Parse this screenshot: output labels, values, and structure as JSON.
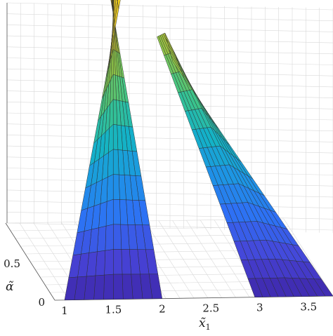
{
  "chart_data": {
    "type": "surface",
    "title": "",
    "x_label": "x̃",
    "x_label_sub": "1",
    "y_label": "α̃",
    "z_label": "",
    "x_ticks": [
      "1",
      "1.5",
      "2",
      "2.5",
      "3",
      "3.5"
    ],
    "y_ticks": [
      "0",
      "0.5"
    ],
    "xlim": [
      0.9,
      3.75
    ],
    "ylim": [
      0,
      1
    ],
    "zlim": [
      0,
      1
    ],
    "grid": true,
    "colormap": [
      "#3e26a8",
      "#4743d6",
      "#2f6ef5",
      "#1e93e6",
      "#13b2c7",
      "#3bc48a",
      "#8bc74a",
      "#d0b82a",
      "#f6d020",
      "#f9fb0e"
    ],
    "surface": [
      {
        "name": "left-peak",
        "base_x": [
          1.0,
          2.0
        ],
        "apex": {
          "x": 1.9,
          "y": 1.0,
          "z": 1.0
        },
        "rows": 14,
        "cols": 10
      },
      {
        "name": "right-peak",
        "base_x": [
          2.9,
          3.75
        ],
        "apex": {
          "x": 2.35,
          "y": 1.0,
          "z": 0.75
        },
        "rows": 14,
        "cols": 10
      }
    ]
  }
}
